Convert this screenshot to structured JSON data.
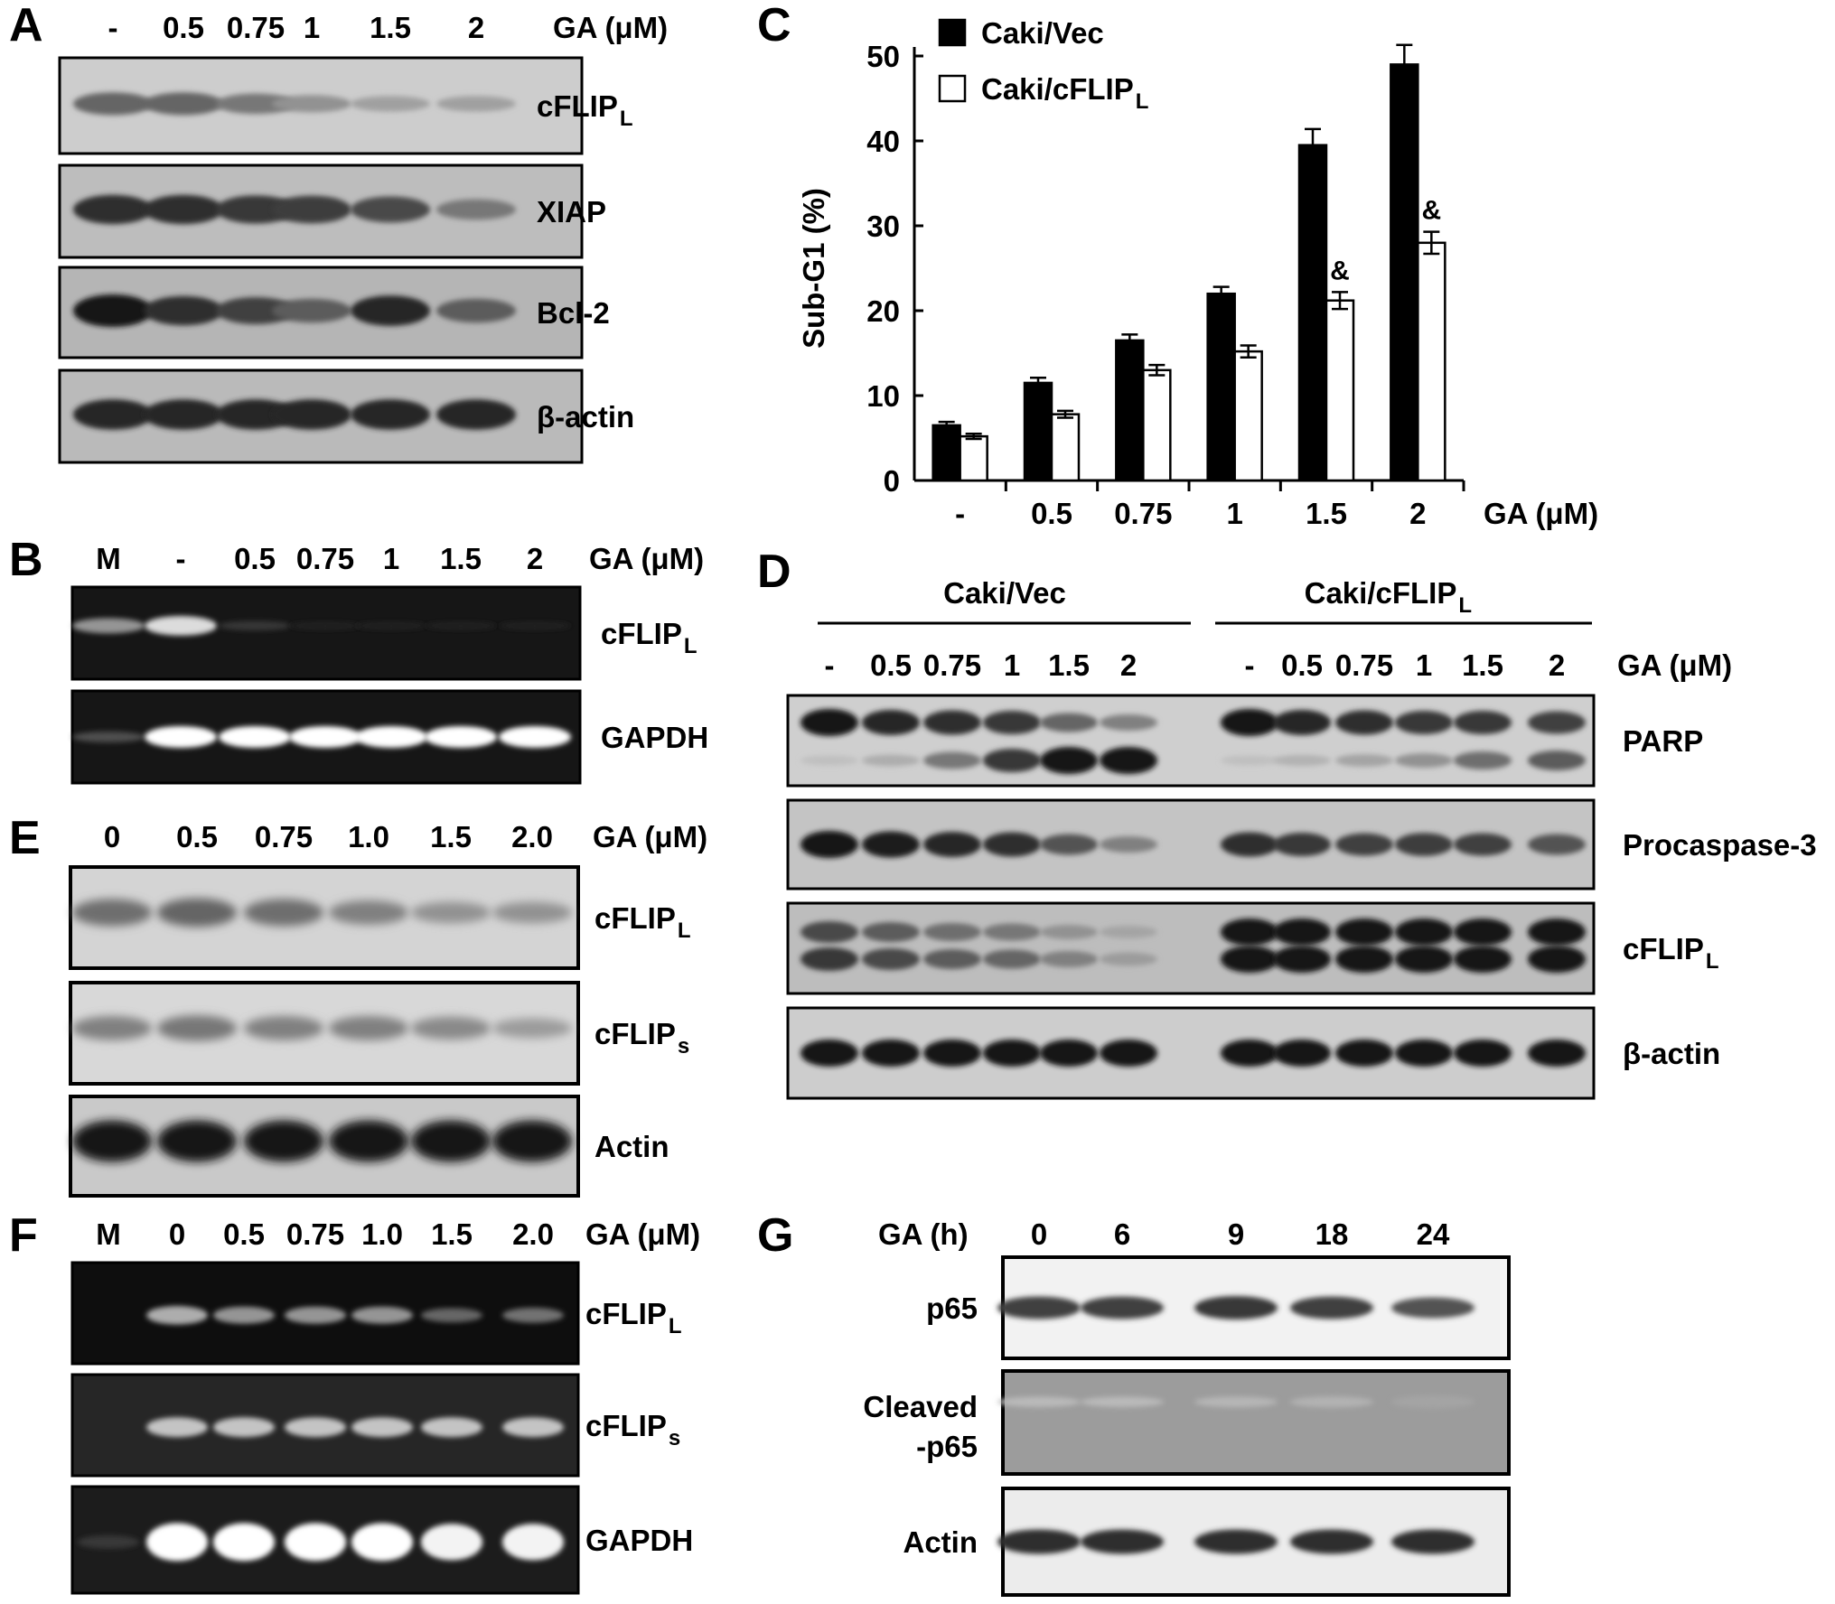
{
  "panels": {
    "A": {
      "letter": "A",
      "unit_label": "GA (μM)",
      "lanes": [
        "-",
        "0.5",
        "0.75",
        "1",
        "1.5",
        "2"
      ],
      "blots": [
        {
          "label": "cFLIP",
          "sub": "L",
          "intensity": [
            0.55,
            0.55,
            0.45,
            0.3,
            0.22,
            0.22
          ],
          "bg": "#cdcdcd"
        },
        {
          "label": "XIAP",
          "sub": "",
          "intensity": [
            0.85,
            0.85,
            0.8,
            0.78,
            0.7,
            0.45
          ],
          "bg": "#bdbdbd"
        },
        {
          "label": "Bcl-2",
          "sub": "",
          "intensity": [
            1.0,
            0.85,
            0.75,
            0.6,
            0.9,
            0.6
          ],
          "bg": "#b5b5b5"
        },
        {
          "label": "β-actin",
          "sub": "",
          "intensity": [
            0.9,
            0.9,
            0.9,
            0.9,
            0.9,
            0.9
          ],
          "bg": "#bababa"
        }
      ]
    },
    "B": {
      "letter": "B",
      "unit_label": "GA (μM)",
      "lanes": [
        "M",
        "-",
        "0.5",
        "0.75",
        "1",
        "1.5",
        "2"
      ],
      "gels": [
        {
          "label": "cFLIP",
          "sub": "L",
          "intensity": [
            0.55,
            0.85,
            0.15,
            0.05,
            0.05,
            0.05,
            0.05
          ]
        },
        {
          "label": "GAPDH",
          "sub": "",
          "intensity": [
            0.25,
            1.0,
            1.0,
            1.0,
            1.0,
            1.0,
            1.0
          ]
        }
      ]
    },
    "C": {
      "letter": "C"
    },
    "D": {
      "letter": "D",
      "group_labels": [
        "Caki/Vec",
        "Caki/cFLIP"
      ],
      "group_subs": [
        "",
        "L"
      ],
      "unit_label": "GA (μM)",
      "lanes": [
        "-",
        "0.5",
        "0.75",
        "1",
        "1.5",
        "2",
        "-",
        "0.5",
        "0.75",
        "1",
        "1.5",
        "2"
      ],
      "blots": [
        {
          "label": "PARP",
          "sub": ""
        },
        {
          "label": "Procaspase-3",
          "sub": ""
        },
        {
          "label": "cFLIP",
          "sub": "L"
        },
        {
          "label": "β-actin",
          "sub": ""
        }
      ]
    },
    "E": {
      "letter": "E",
      "unit_label": "GA (μM)",
      "lanes": [
        "0",
        "0.5",
        "0.75",
        "1.0",
        "1.5",
        "2.0"
      ],
      "blots": [
        {
          "label": "cFLIP",
          "sub": "L",
          "intensity": [
            0.5,
            0.55,
            0.5,
            0.4,
            0.3,
            0.3
          ],
          "bg": "#d4d4d4"
        },
        {
          "label": "cFLIP",
          "sub": "s",
          "intensity": [
            0.4,
            0.45,
            0.4,
            0.4,
            0.35,
            0.25
          ],
          "bg": "#d8d8d8"
        },
        {
          "label": "Actin",
          "sub": "",
          "intensity": [
            1.0,
            1.0,
            1.0,
            1.0,
            1.0,
            1.0
          ],
          "bg": "#c9c9c9"
        }
      ]
    },
    "F": {
      "letter": "F",
      "unit_label": "GA (μM)",
      "lanes": [
        "M",
        "0",
        "0.5",
        "0.75",
        "1.0",
        "1.5",
        "2.0"
      ],
      "gels": [
        {
          "label": "cFLIP",
          "sub": "L",
          "intensity": [
            0.0,
            0.65,
            0.55,
            0.55,
            0.55,
            0.35,
            0.4
          ]
        },
        {
          "label": "cFLIP",
          "sub": "s",
          "intensity": [
            0.0,
            0.75,
            0.75,
            0.75,
            0.75,
            0.75,
            0.75
          ]
        },
        {
          "label": "GAPDH",
          "sub": "",
          "intensity": [
            0.15,
            1.0,
            1.0,
            1.0,
            1.0,
            0.95,
            0.95
          ]
        }
      ]
    },
    "G": {
      "letter": "G",
      "unit_label": "GA (h)",
      "lanes": [
        "0",
        "6",
        "9",
        "18",
        "24"
      ],
      "blots": [
        {
          "label": "p65",
          "label2": "",
          "intensity": [
            0.75,
            0.75,
            0.8,
            0.75,
            0.65
          ],
          "bg": "#f2f2f2"
        },
        {
          "label": "Cleaved",
          "label2": "-p65",
          "intensity": [
            0.08,
            0.08,
            0.1,
            0.12,
            0.2
          ],
          "bg": "#9c9c9c"
        },
        {
          "label": "Actin",
          "label2": "",
          "intensity": [
            0.85,
            0.85,
            0.85,
            0.85,
            0.85
          ],
          "bg": "#ececec"
        }
      ]
    }
  },
  "chart_data": {
    "type": "bar",
    "categories": [
      "-",
      "0.5",
      "0.75",
      "1",
      "1.5",
      "2"
    ],
    "xlabel": "GA (μM)",
    "ylabel": "Sub-G1 (%)",
    "ylim": [
      0,
      50
    ],
    "yticks": [
      0,
      10,
      20,
      30,
      40,
      50
    ],
    "legend_position": "top-left",
    "series": [
      {
        "name": "Caki/Vec",
        "values": [
          6.5,
          11.5,
          16.5,
          22.0,
          39.5,
          49.0
        ],
        "errors": [
          0.4,
          0.6,
          0.7,
          0.8,
          1.9,
          2.3
        ],
        "color": "#000000"
      },
      {
        "name": "Caki/cFLIP",
        "name_sub": "L",
        "values": [
          5.2,
          7.8,
          13.0,
          15.2,
          21.2,
          28.0
        ],
        "errors": [
          0.3,
          0.4,
          0.6,
          0.7,
          1.0,
          1.3
        ],
        "color": "#ffffff"
      }
    ],
    "annotations": [
      {
        "category": "1.5",
        "series": "Caki/cFLIP",
        "text": "&"
      },
      {
        "category": "2",
        "series": "Caki/cFLIP",
        "text": "&"
      }
    ]
  }
}
